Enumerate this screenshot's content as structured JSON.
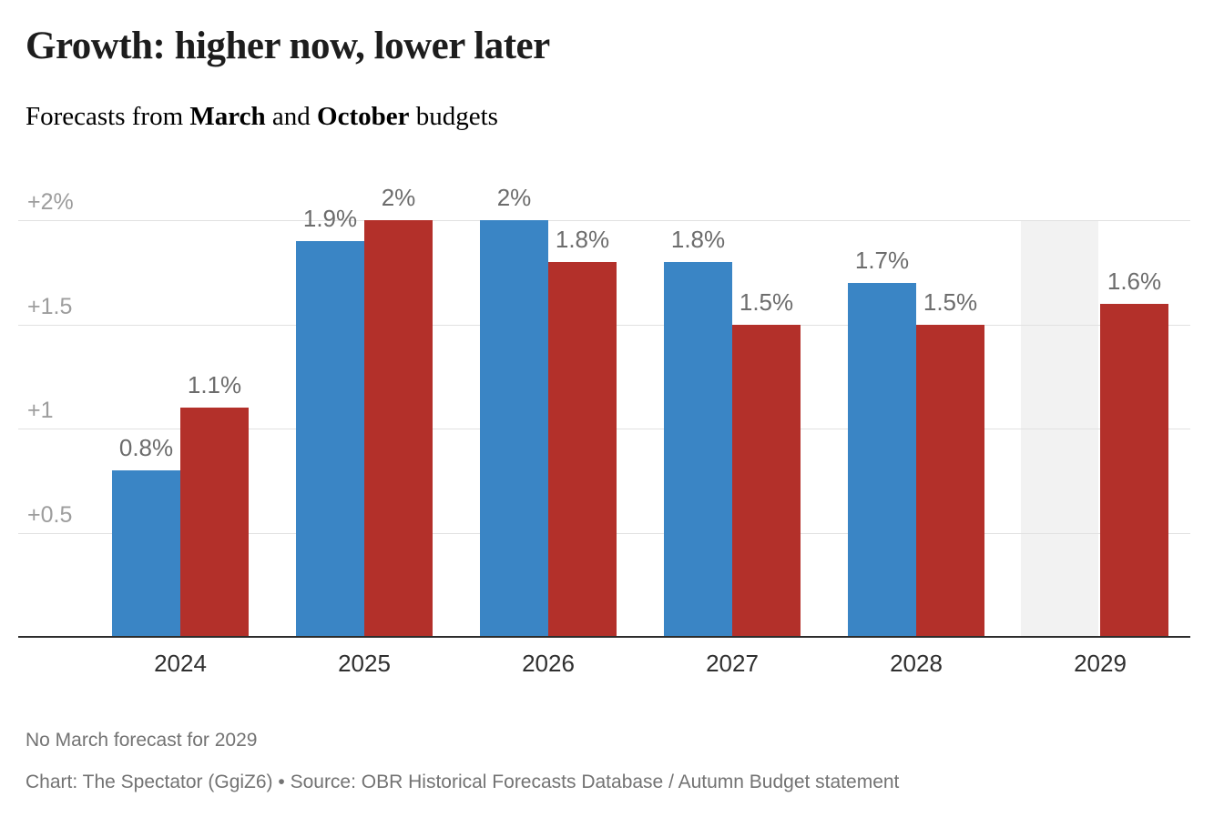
{
  "header": {
    "title": "Growth: higher now, lower later",
    "subtitle": {
      "prefix": "Forecasts from ",
      "march": "March",
      "and": " and ",
      "october": "October",
      "suffix": " budgets"
    }
  },
  "colors": {
    "march_blue": "#3a85c5",
    "october_red": "#b3302a",
    "no_data_band": "#f2f2f2",
    "gridline": "#e1e1e1",
    "axis_line": "#2c2c2c",
    "value_label": "#6c6c6c",
    "tick_label": "#9d9d9d",
    "x_label": "#2f2f2f"
  },
  "chart_data": {
    "type": "bar",
    "title": "Growth: higher now, lower later",
    "subtitle": "Forecasts from March and October budgets",
    "categories": [
      "2024",
      "2025",
      "2026",
      "2027",
      "2028",
      "2029"
    ],
    "series": [
      {
        "name": "March",
        "color_key": "march_blue",
        "values": [
          0.8,
          1.9,
          2,
          1.8,
          1.7,
          null
        ],
        "labels": [
          "0.8%",
          "1.9%",
          "2%",
          "1.8%",
          "1.7%",
          null
        ]
      },
      {
        "name": "October",
        "color_key": "october_red",
        "values": [
          1.1,
          2,
          1.8,
          1.5,
          1.5,
          1.6
        ],
        "labels": [
          "1.1%",
          "2%",
          "1.8%",
          "1.5%",
          "1.5%",
          "1.6%"
        ]
      }
    ],
    "y_ticks": [
      {
        "value": 0.5,
        "label": "+0.5"
      },
      {
        "value": 1,
        "label": "+1"
      },
      {
        "value": 1.5,
        "label": "+1.5"
      },
      {
        "value": 2,
        "label": "+2%"
      }
    ],
    "ylim": [
      0,
      2.1
    ],
    "xlabel": "",
    "ylabel": "",
    "grid": "horizontal",
    "legend": "inline-in-subtitle",
    "no_data": {
      "series": "March",
      "category": "2029"
    }
  },
  "footer": {
    "note": "No March forecast for 2029",
    "credit": "Chart: The Spectator (GgiZ6) • Source: OBR Historical Forecasts Database / Autumn Budget statement"
  }
}
